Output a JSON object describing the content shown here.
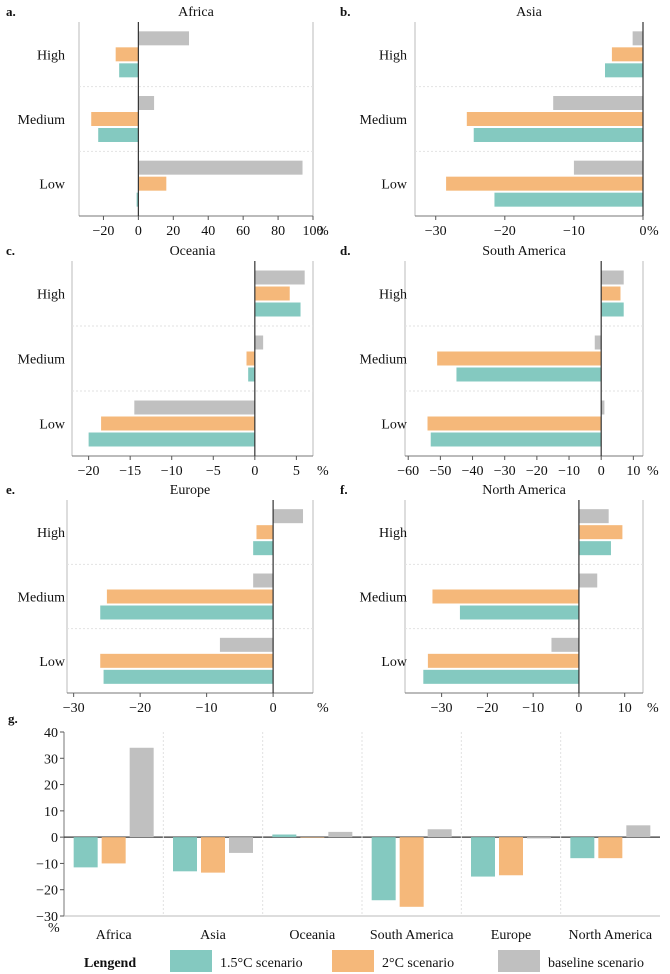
{
  "figure": {
    "caption_hint": "",
    "colors": {
      "s15": "#84c9c0",
      "s2": "#f5b87a",
      "base": "#c0c0c0",
      "axis": "#333333"
    }
  },
  "panels": [
    {
      "label": "a.",
      "title": "Africa",
      "unit": "%",
      "categories": [
        "High",
        "Medium",
        "Low"
      ],
      "ticks": [
        -20,
        0,
        20,
        40,
        60,
        80,
        100
      ],
      "xlim": [
        -34,
        100
      ]
    },
    {
      "label": "b.",
      "title": "Asia",
      "unit": "%",
      "categories": [
        "High",
        "Medium",
        "Low"
      ],
      "ticks": [
        -30,
        -20,
        -10,
        0
      ],
      "xlim": [
        -33,
        0
      ]
    },
    {
      "label": "c.",
      "title": "Oceania",
      "unit": "%",
      "categories": [
        "High",
        "Medium",
        "Low"
      ],
      "ticks": [
        -20,
        -15,
        -10,
        -5,
        0,
        5
      ],
      "xlim": [
        -22,
        7
      ]
    },
    {
      "label": "d.",
      "title": "South America",
      "unit": "%",
      "categories": [
        "High",
        "Medium",
        "Low"
      ],
      "ticks": [
        -60,
        -50,
        -40,
        -30,
        -20,
        -10,
        0,
        10
      ],
      "xlim": [
        -61,
        13
      ]
    },
    {
      "label": "e.",
      "title": "Europe",
      "unit": "%",
      "categories": [
        "High",
        "Medium",
        "Low"
      ],
      "ticks": [
        -30,
        -20,
        -10,
        0
      ],
      "xlim": [
        -31,
        6
      ]
    },
    {
      "label": "f.",
      "title": "North America",
      "unit": "%",
      "categories": [
        "High",
        "Medium",
        "Low"
      ],
      "ticks": [
        -30,
        -20,
        -10,
        0,
        10
      ],
      "xlim": [
        -38,
        14
      ]
    }
  ],
  "bottom_panel": {
    "label": "g.",
    "unit": "%",
    "categories": [
      "Africa",
      "Asia",
      "Oceania",
      "South America",
      "Europe",
      "North America"
    ],
    "ticks": [
      40,
      30,
      20,
      10,
      0,
      -10,
      -20,
      -30
    ],
    "ylim": [
      -30,
      40
    ]
  },
  "legend": {
    "title": "Lengend",
    "items": [
      {
        "label": "1.5°C scenario",
        "color_key": "s15"
      },
      {
        "label": "2°C scenario",
        "color_key": "s2"
      },
      {
        "label": "baseline scenario",
        "color_key": "base"
      }
    ]
  },
  "chart_data": [
    {
      "type": "bar",
      "orientation": "horizontal",
      "title": "Africa",
      "xlabel": "%",
      "categories": [
        "High",
        "Medium",
        "Low"
      ],
      "xlim": [
        -34,
        100
      ],
      "series": [
        {
          "name": "1.5°C scenario",
          "values": [
            -11,
            -23,
            -1
          ]
        },
        {
          "name": "2°C scenario",
          "values": [
            -13,
            -27,
            16
          ]
        },
        {
          "name": "baseline scenario",
          "values": [
            29,
            9,
            94
          ]
        }
      ]
    },
    {
      "type": "bar",
      "orientation": "horizontal",
      "title": "Asia",
      "xlabel": "%",
      "categories": [
        "High",
        "Medium",
        "Low"
      ],
      "xlim": [
        -33,
        0
      ],
      "series": [
        {
          "name": "1.5°C scenario",
          "values": [
            -5.5,
            -24.5,
            -21.5
          ]
        },
        {
          "name": "2°C scenario",
          "values": [
            -4.5,
            -25.5,
            -28.5
          ]
        },
        {
          "name": "baseline scenario",
          "values": [
            -1.5,
            -13,
            -10
          ]
        }
      ]
    },
    {
      "type": "bar",
      "orientation": "horizontal",
      "title": "Oceania",
      "xlabel": "%",
      "categories": [
        "High",
        "Medium",
        "Low"
      ],
      "xlim": [
        -22,
        7
      ],
      "series": [
        {
          "name": "1.5°C scenario",
          "values": [
            5.5,
            -0.8,
            -20
          ]
        },
        {
          "name": "2°C scenario",
          "values": [
            4.2,
            -1.0,
            -18.5
          ]
        },
        {
          "name": "baseline scenario",
          "values": [
            6.0,
            1.0,
            -14.5
          ]
        }
      ]
    },
    {
      "type": "bar",
      "orientation": "horizontal",
      "title": "South America",
      "xlabel": "%",
      "categories": [
        "High",
        "Medium",
        "Low"
      ],
      "xlim": [
        -61,
        13
      ],
      "series": [
        {
          "name": "1.5°C scenario",
          "values": [
            7,
            -45,
            -53
          ]
        },
        {
          "name": "2°C scenario",
          "values": [
            6,
            -51,
            -54
          ]
        },
        {
          "name": "baseline scenario",
          "values": [
            7,
            -2,
            1
          ]
        }
      ]
    },
    {
      "type": "bar",
      "orientation": "horizontal",
      "title": "Europe",
      "xlabel": "%",
      "categories": [
        "High",
        "Medium",
        "Low"
      ],
      "xlim": [
        -31,
        6
      ],
      "series": [
        {
          "name": "1.5°C scenario",
          "values": [
            -3,
            -26,
            -25.5
          ]
        },
        {
          "name": "2°C scenario",
          "values": [
            -2.5,
            -25,
            -26
          ]
        },
        {
          "name": "baseline scenario",
          "values": [
            4.5,
            -3,
            -8
          ]
        }
      ]
    },
    {
      "type": "bar",
      "orientation": "horizontal",
      "title": "North America",
      "xlabel": "%",
      "categories": [
        "High",
        "Medium",
        "Low"
      ],
      "xlim": [
        -38,
        14
      ],
      "series": [
        {
          "name": "1.5°C scenario",
          "values": [
            7,
            -26,
            -34
          ]
        },
        {
          "name": "2°C scenario",
          "values": [
            9.5,
            -32,
            -33
          ]
        },
        {
          "name": "baseline scenario",
          "values": [
            6.5,
            4,
            -6
          ]
        }
      ]
    },
    {
      "type": "bar",
      "orientation": "vertical",
      "title": "",
      "ylabel": "%",
      "categories": [
        "Africa",
        "Asia",
        "Oceania",
        "South America",
        "Europe",
        "North America"
      ],
      "ylim": [
        -30,
        40
      ],
      "series": [
        {
          "name": "1.5°C scenario",
          "values": [
            -11.5,
            -13,
            1,
            -24,
            -15,
            -8
          ]
        },
        {
          "name": "2°C scenario",
          "values": [
            -10,
            -13.5,
            0,
            -26.5,
            -14.5,
            -8
          ]
        },
        {
          "name": "baseline scenario",
          "values": [
            34,
            -6,
            2,
            3,
            -0.5,
            4.5
          ]
        }
      ]
    }
  ]
}
